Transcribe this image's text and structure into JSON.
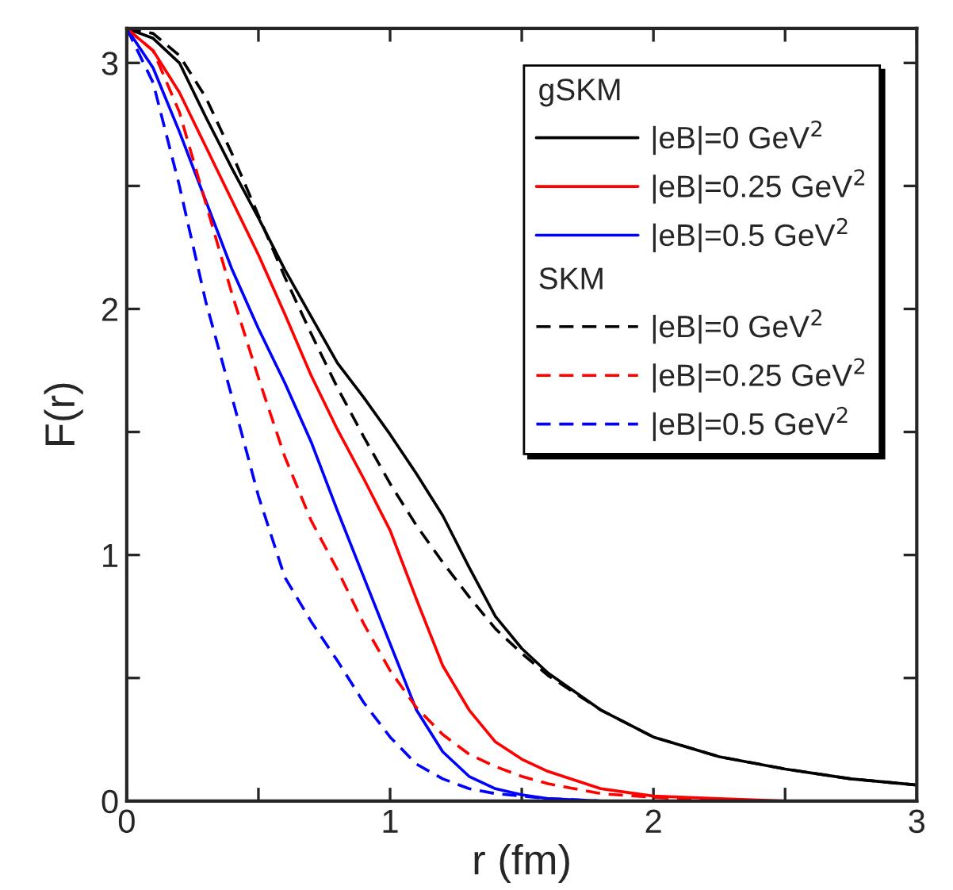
{
  "chart_data": {
    "type": "line",
    "xlabel": "r (fm)",
    "ylabel": "F(r)",
    "x": [
      0,
      0.1,
      0.2,
      0.3,
      0.4,
      0.5,
      0.6,
      0.7,
      0.8,
      0.9,
      1.0,
      1.1,
      1.2,
      1.3,
      1.4,
      1.5,
      1.6,
      1.8,
      2.0,
      2.25,
      2.5,
      2.75,
      3.0
    ],
    "legend_title": [
      "gSKM",
      "SKM"
    ],
    "series": [
      {
        "name": "|eB|=0 GeV$^{2}$",
        "color": "#000000",
        "line_style": "solid",
        "values": [
          3.14,
          3.1,
          3.0,
          2.78,
          2.57,
          2.37,
          2.16,
          1.97,
          1.78,
          1.64,
          1.49,
          1.33,
          1.16,
          0.95,
          0.75,
          0.62,
          0.52,
          0.37,
          0.26,
          0.18,
          0.13,
          0.09,
          0.065
        ]
      },
      {
        "name": "|eB|=0.25 GeV$^{2}$",
        "color": "#ff0000",
        "line_style": "solid",
        "values": [
          3.14,
          3.05,
          2.88,
          2.66,
          2.44,
          2.22,
          1.98,
          1.73,
          1.51,
          1.31,
          1.1,
          0.82,
          0.55,
          0.37,
          0.24,
          0.17,
          0.12,
          0.05,
          0.02,
          0.01,
          0,
          null,
          null
        ]
      },
      {
        "name": "|eB|=0.5 GeV$^{2}$",
        "color": "#0000ff",
        "line_style": "solid",
        "values": [
          3.14,
          2.98,
          2.72,
          2.44,
          2.16,
          1.92,
          1.7,
          1.46,
          1.18,
          0.91,
          0.64,
          0.37,
          0.2,
          0.1,
          0.05,
          0.025,
          0.01,
          0,
          0,
          null,
          null,
          null,
          null
        ]
      },
      {
        "name": "|eB|=0 GeV$^{2}$",
        "color": "#000000",
        "line_style": "dashed",
        "values": [
          3.14,
          3.12,
          3.03,
          2.86,
          2.63,
          2.38,
          2.13,
          1.9,
          1.68,
          1.48,
          1.29,
          1.12,
          0.97,
          0.83,
          0.7,
          0.6,
          0.51,
          0.37,
          0.26,
          0.18,
          0.13,
          0.09,
          0.065
        ]
      },
      {
        "name": "|eB|=0.25 GeV$^{2}$",
        "color": "#ff0000",
        "line_style": "dashed",
        "values": [
          3.14,
          3.05,
          2.8,
          2.43,
          2.06,
          1.72,
          1.4,
          1.14,
          0.94,
          0.72,
          0.53,
          0.38,
          0.27,
          0.19,
          0.14,
          0.1,
          0.07,
          0.03,
          0.015,
          0,
          0,
          null,
          null
        ]
      },
      {
        "name": "|eB|=0.5 GeV$^{2}$",
        "color": "#0000ff",
        "line_style": "dashed",
        "values": [
          3.14,
          2.92,
          2.5,
          2.03,
          1.64,
          1.24,
          0.91,
          0.73,
          0.57,
          0.4,
          0.26,
          0.15,
          0.09,
          0.05,
          0.03,
          0.02,
          0.01,
          0,
          null,
          null,
          null,
          null,
          null
        ]
      }
    ],
    "xlim": [
      0,
      3
    ],
    "ylim": [
      0,
      3.14
    ],
    "xticks": [
      0,
      {
        "value": 0.5,
        "label": null
      },
      1,
      {
        "value": 1.5,
        "label": null
      },
      2,
      {
        "value": 2.5,
        "label": null
      },
      3
    ],
    "yticks": [
      0,
      {
        "value": 0.5,
        "label": null
      },
      1,
      {
        "value": 1.5,
        "label": null
      },
      2,
      {
        "value": 2.5,
        "label": null
      },
      3
    ],
    "grid": false,
    "legend": "top right",
    "marker": "none"
  }
}
